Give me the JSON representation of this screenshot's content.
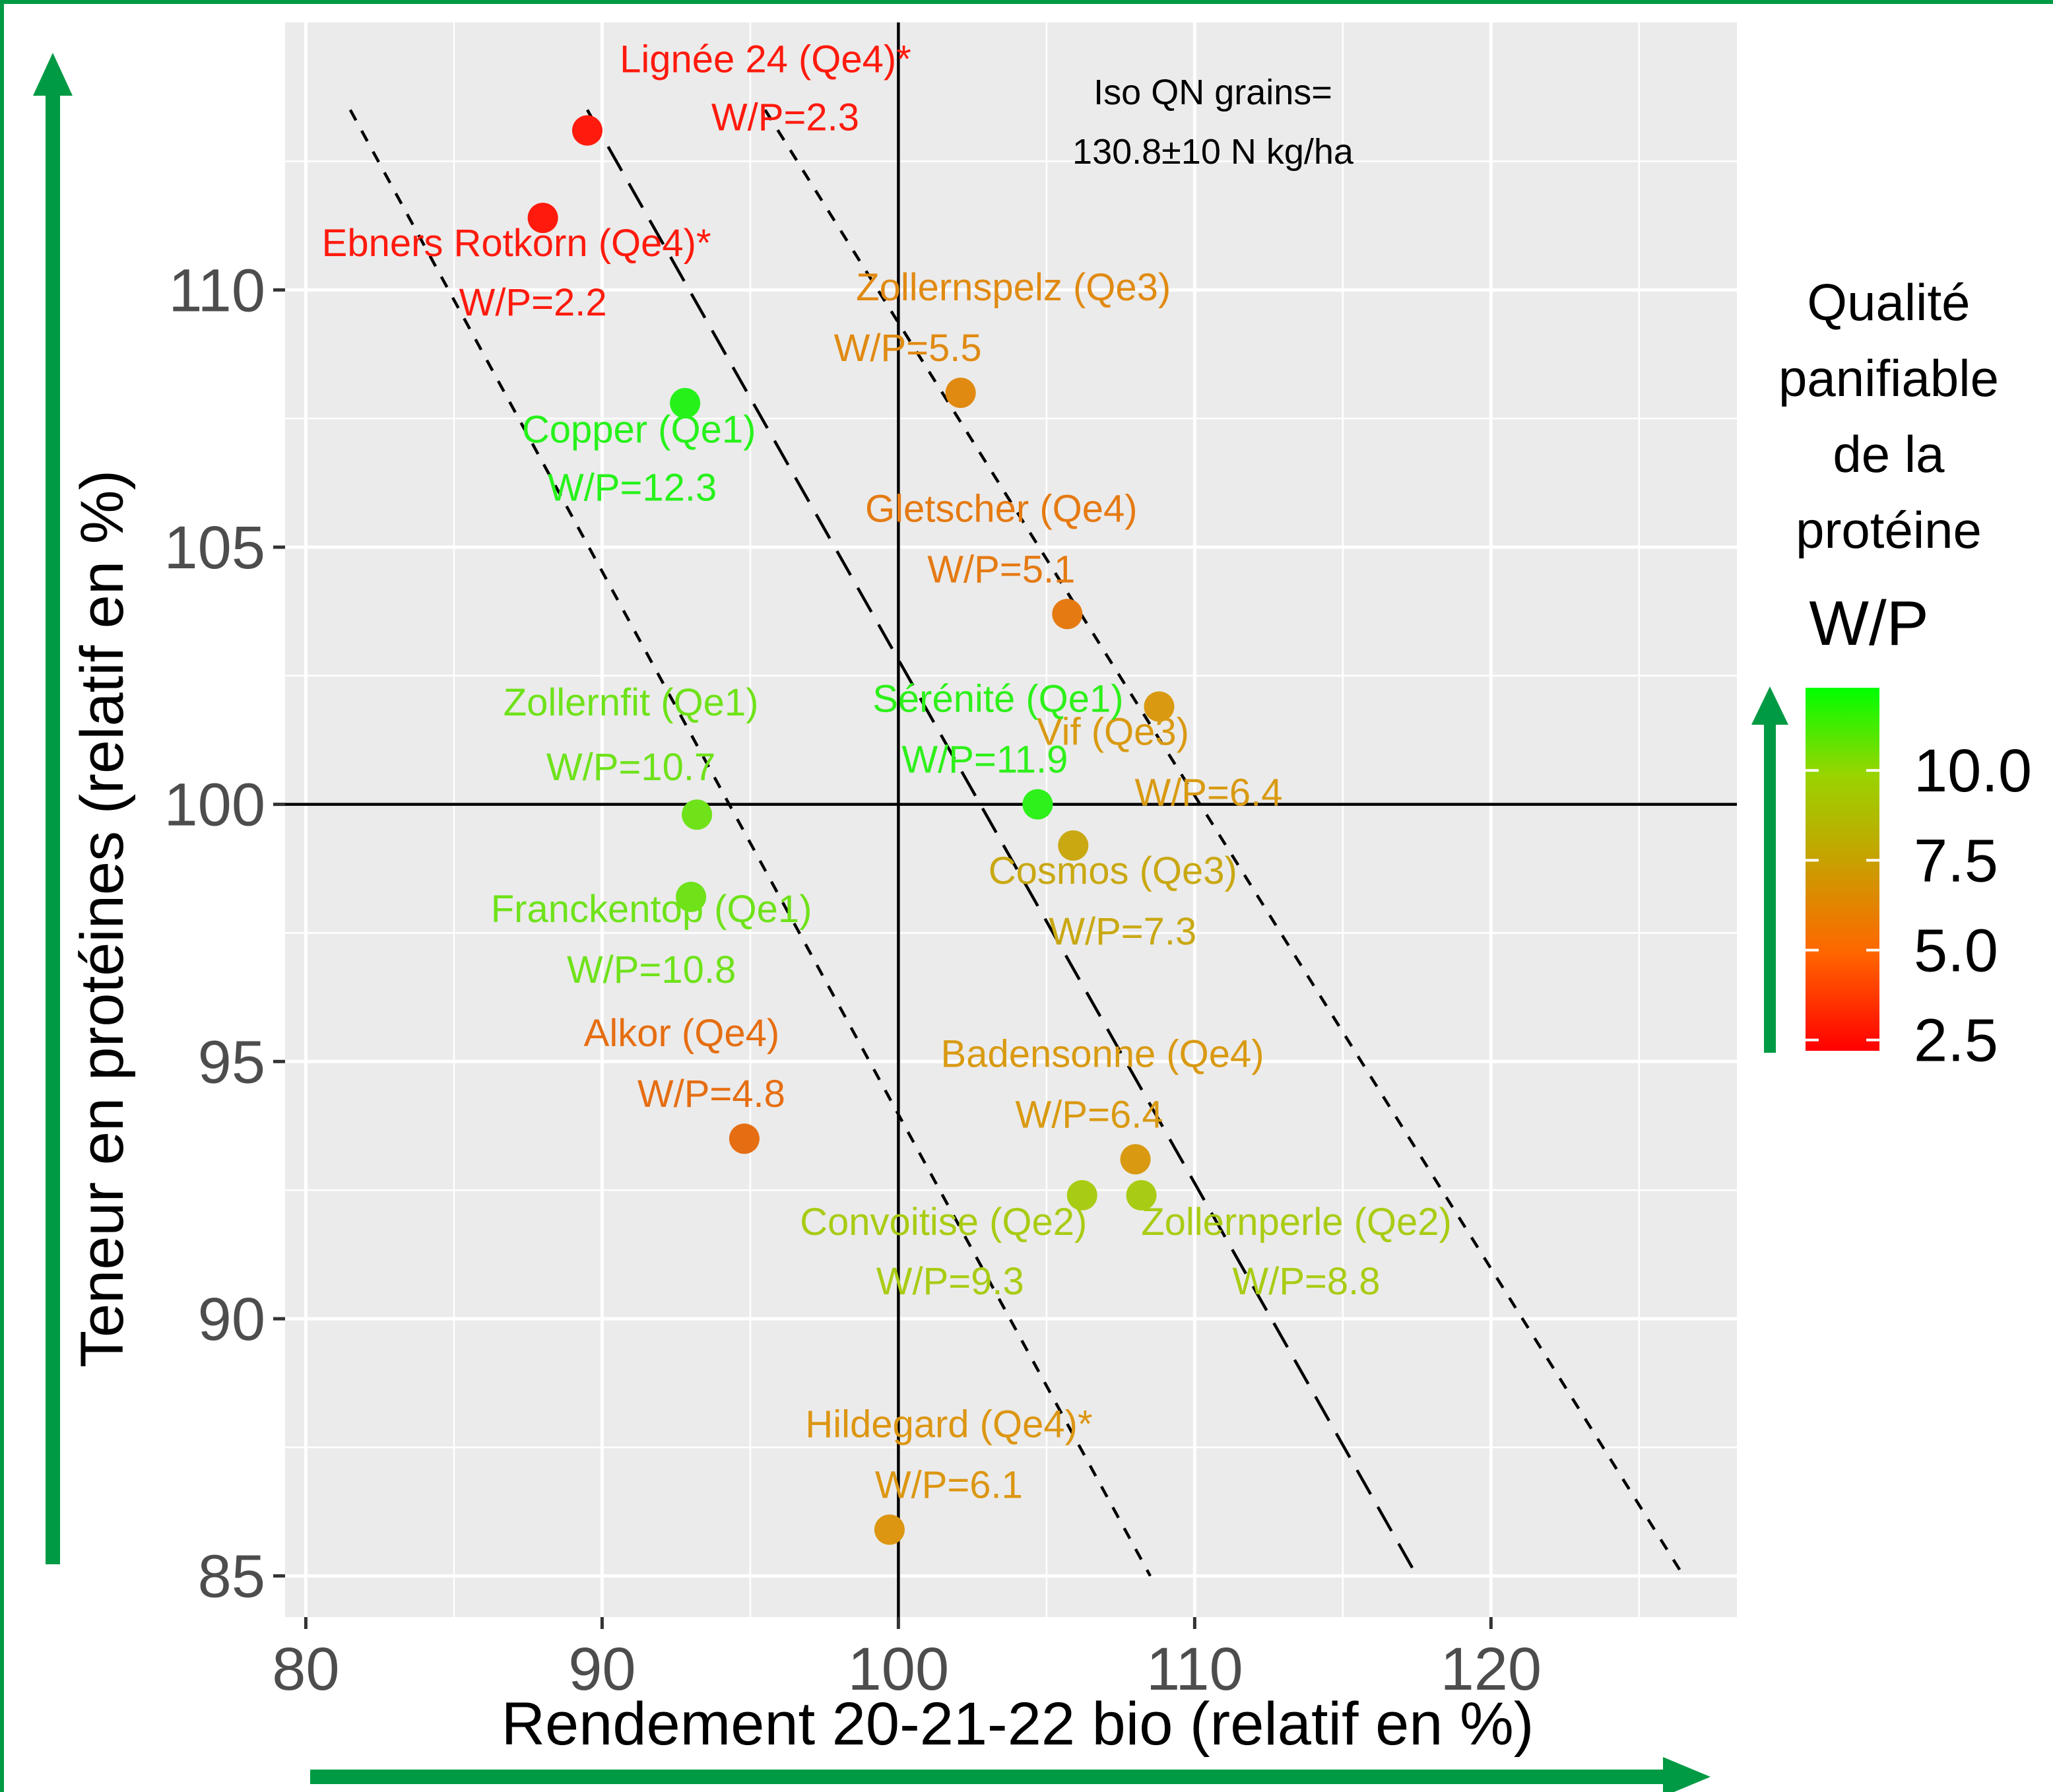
{
  "colors": {
    "panel_bg": "#ebebeb",
    "grid": "#ffffff",
    "arrow_green": "#009a44",
    "frame_green": "#009a44",
    "gradient_stops": [
      "#ff0000",
      "#ff6600",
      "#c8a000",
      "#99d400",
      "#00ff00"
    ]
  },
  "chart_data": {
    "type": "scatter",
    "xlabel": "Rendement 20-21-22 bio (relatif en %)",
    "ylabel": "Teneur en protéines (relatif en %)",
    "xlim": [
      79.3,
      128.3
    ],
    "ylim": [
      84.2,
      115.2
    ],
    "xticks": [
      80,
      90,
      100,
      110,
      120
    ],
    "yticks": [
      85,
      90,
      95,
      100,
      105,
      110
    ],
    "x_tick_labels": [
      "80",
      "90",
      "100",
      "110",
      "120"
    ],
    "y_tick_labels": [
      "85",
      "90",
      "95",
      "100",
      "105",
      "110"
    ],
    "grid": true,
    "reference_lines": {
      "x": 100,
      "y": 100
    },
    "iso_curves": [
      {
        "style": "short-dash",
        "points": [
          [
            81.5,
            113.5
          ],
          [
            108.5,
            85
          ]
        ]
      },
      {
        "style": "long-dash",
        "points": [
          [
            89.5,
            113.5
          ],
          [
            117.5,
            85
          ]
        ]
      },
      {
        "style": "short-dash",
        "points": [
          [
            95.5,
            113.5
          ],
          [
            126.5,
            85
          ]
        ]
      }
    ],
    "annotation": [
      "Iso QN grains=",
      "130.8±10 N kg/ha"
    ],
    "color_scale": {
      "title": [
        "Qualité",
        "panifiable",
        "de la",
        "protéine"
      ],
      "variable": "W/P",
      "min": 2.2,
      "max": 12.3,
      "ticks": [
        2.5,
        5.0,
        7.5,
        10.0
      ],
      "tick_labels": [
        "2.5",
        "5.0",
        "7.5",
        "10.0"
      ],
      "placement": "right"
    },
    "points": [
      {
        "x": 89.5,
        "y": 113.1,
        "wp": 2.3,
        "name": "Lignée 24 (Qe4)*",
        "wp_label": "W/P=2.3",
        "color": "#ff1a0d"
      },
      {
        "x": 88.0,
        "y": 111.4,
        "wp": 2.2,
        "name": "Ebners Rotkorn (Qe4)*",
        "wp_label": "W/P=2.2",
        "color": "#ff1a0d"
      },
      {
        "x": 102.1,
        "y": 108.0,
        "wp": 5.5,
        "name": "Zollernspelz (Qe3)",
        "wp_label": "W/P=5.5",
        "color": "#e08a12"
      },
      {
        "x": 92.8,
        "y": 107.8,
        "wp": 12.3,
        "name": "Copper (Qe1)",
        "wp_label": "W/P=12.3",
        "color": "#26f21a"
      },
      {
        "x": 105.7,
        "y": 103.7,
        "wp": 5.1,
        "name": "Gletscher (Qe4)",
        "wp_label": "W/P=5.1",
        "color": "#e57a12"
      },
      {
        "x": 108.8,
        "y": 101.9,
        "wp": 6.4,
        "name": "Vif (Qe3)",
        "wp_label": "W/P=6.4",
        "color": "#d99a12"
      },
      {
        "x": 104.7,
        "y": 100.0,
        "wp": 11.9,
        "name": "Sérénité (Qe1)",
        "wp_label": "W/P=11.9",
        "color": "#2ef01a"
      },
      {
        "x": 93.2,
        "y": 99.8,
        "wp": 10.7,
        "name": "Zollernfit (Qe1)",
        "wp_label": "W/P=10.7",
        "color": "#6fe21a"
      },
      {
        "x": 105.9,
        "y": 99.2,
        "wp": 7.3,
        "name": "Cosmos (Qe3)",
        "wp_label": "W/P=7.3",
        "color": "#c9a812"
      },
      {
        "x": 93.0,
        "y": 98.2,
        "wp": 10.8,
        "name": "Franckentop (Qe1)",
        "wp_label": "W/P=10.8",
        "color": "#6fe21a"
      },
      {
        "x": 94.8,
        "y": 93.5,
        "wp": 4.8,
        "name": "Alkor (Qe4)",
        "wp_label": "W/P=4.8",
        "color": "#e56e12"
      },
      {
        "x": 108.0,
        "y": 93.1,
        "wp": 6.4,
        "name": "Badensonne (Qe4)",
        "wp_label": "W/P=6.4",
        "color": "#d99a12"
      },
      {
        "x": 106.2,
        "y": 92.4,
        "wp": 9.3,
        "name": "Convoitise (Qe2)",
        "wp_label": "W/P=9.3",
        "color": "#a8cc14"
      },
      {
        "x": 108.2,
        "y": 92.4,
        "wp": 8.8,
        "name": "Zollernperle (Qe2)",
        "wp_label": "W/P=8.8",
        "color": "#a8cc14"
      },
      {
        "x": 99.7,
        "y": 85.9,
        "wp": 6.1,
        "name": "Hildegard (Qe4)*",
        "wp_label": "W/P=6.1",
        "color": "#dc9612"
      }
    ]
  }
}
